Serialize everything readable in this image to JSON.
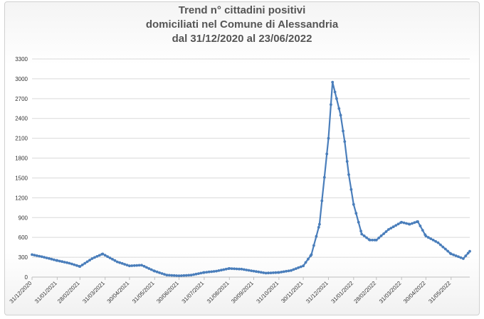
{
  "chart_data": {
    "type": "line",
    "title_lines": [
      "Trend n° cittadini positivi",
      "domiciliati nel Comune di Alessandria",
      "dal 31/12/2020 al 23/06/2022"
    ],
    "xlabel": "",
    "ylabel": "",
    "ylim": [
      0,
      3300
    ],
    "yticks": [
      0,
      300,
      600,
      900,
      1200,
      1500,
      1800,
      2100,
      2400,
      2700,
      3000,
      3300
    ],
    "xticks": [
      "31/12/2020",
      "31/01/2021",
      "28/02/2021",
      "31/03/2021",
      "30/04/2021",
      "31/05/2021",
      "30/06/2021",
      "31/07/2021",
      "31/08/2021",
      "30/09/2021",
      "31/10/2021",
      "30/11/2021",
      "31/12/2021",
      "31/01/2022",
      "28/02/2022",
      "31/03/2022",
      "30/04/2022",
      "31/05/2022"
    ],
    "grid": true,
    "legend": "none",
    "color": "#4a7ebb",
    "series": [
      {
        "x": [
          "31/12/2020",
          "15/01/2021",
          "31/01/2021",
          "15/02/2021",
          "28/02/2021",
          "15/03/2021",
          "28/03/2021",
          "15/04/2021",
          "30/04/2021",
          "15/05/2021",
          "31/05/2021",
          "15/06/2021",
          "30/06/2021",
          "15/07/2021",
          "31/07/2021",
          "15/08/2021",
          "31/08/2021",
          "15/09/2021",
          "30/09/2021",
          "15/10/2021",
          "31/10/2021",
          "15/11/2021",
          "30/11/2021",
          "10/12/2021",
          "20/12/2021",
          "31/12/2021",
          "05/01/2022",
          "10/01/2022",
          "15/01/2022",
          "20/01/2022",
          "25/01/2022",
          "31/01/2022",
          "10/02/2022",
          "20/02/2022",
          "28/02/2022",
          "15/03/2022",
          "31/03/2022",
          "10/04/2022",
          "20/04/2022",
          "30/04/2022",
          "15/05/2022",
          "31/05/2022",
          "15/06/2022",
          "23/06/2022"
        ],
        "values": [
          340,
          300,
          250,
          210,
          160,
          280,
          350,
          230,
          170,
          180,
          90,
          30,
          20,
          30,
          70,
          90,
          130,
          120,
          90,
          60,
          70,
          100,
          170,
          340,
          800,
          2100,
          2950,
          2700,
          2450,
          2050,
          1550,
          1100,
          650,
          560,
          560,
          720,
          830,
          800,
          840,
          620,
          520,
          350,
          280,
          390
        ]
      }
    ]
  }
}
